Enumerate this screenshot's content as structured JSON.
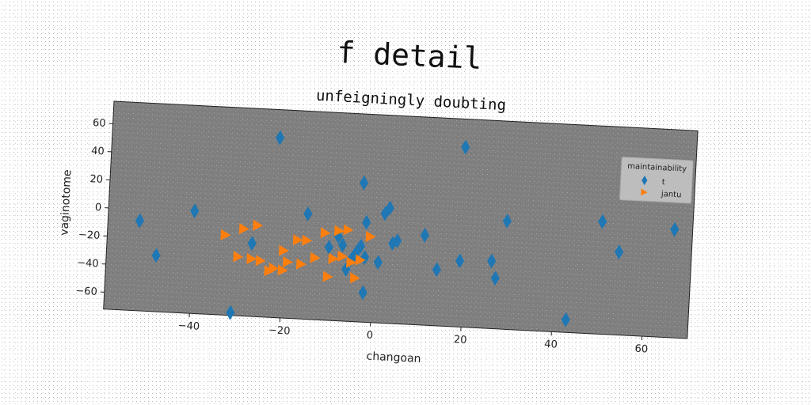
{
  "chart_data": {
    "type": "scatter",
    "title": "f detail",
    "subtitle": "unfeigningly doubting",
    "xlabel": "changoan",
    "ylabel": "vaginotome",
    "xlim": [
      -59,
      70
    ],
    "ylim": [
      -72,
      76
    ],
    "xticks": [
      -40,
      -20,
      0,
      20,
      40,
      60
    ],
    "yticks": [
      -60,
      -40,
      -20,
      0,
      20,
      40,
      60
    ],
    "xtick_labels": [
      "−40",
      "−20",
      "0",
      "20",
      "40",
      "60"
    ],
    "ytick_labels": [
      "−60",
      "−40",
      "−20",
      "0",
      "20",
      "40",
      "60"
    ],
    "grid": false,
    "legend": {
      "title": "maintainability",
      "placement": "top-right"
    },
    "series": [
      {
        "name": "t",
        "marker": "diamond",
        "color": "#1f77b4",
        "points": [
          [
            -52,
            -8
          ],
          [
            -48,
            -32
          ],
          [
            -40,
            1
          ],
          [
            -31,
            -70
          ],
          [
            -27,
            -20
          ],
          [
            -22,
            56
          ],
          [
            -15,
            3
          ],
          [
            -10,
            -20
          ],
          [
            -8,
            -12
          ],
          [
            -7,
            -18
          ],
          [
            -6,
            -35
          ],
          [
            -5,
            -28
          ],
          [
            -4,
            -23
          ],
          [
            -3,
            -18
          ],
          [
            -3,
            27
          ],
          [
            -2,
            -26
          ],
          [
            -2,
            -1
          ],
          [
            -2,
            -51
          ],
          [
            1,
            -29
          ],
          [
            2,
            6
          ],
          [
            3,
            10
          ],
          [
            4,
            -15
          ],
          [
            5,
            -13
          ],
          [
            11,
            -8
          ],
          [
            14,
            -32
          ],
          [
            19,
            56
          ],
          [
            19,
            -25
          ],
          [
            26,
            -24
          ],
          [
            27,
            -36
          ],
          [
            29,
            5
          ],
          [
            43,
            -63
          ],
          [
            50,
            8
          ],
          [
            54,
            -13
          ],
          [
            66,
            5
          ]
        ]
      },
      {
        "name": "jantu",
        "marker": "triangle-right",
        "color": "#ff7f0e",
        "points": [
          [
            -33,
            -15
          ],
          [
            -30,
            -30
          ],
          [
            -29,
            -10
          ],
          [
            -27,
            -31
          ],
          [
            -26,
            -7
          ],
          [
            -25,
            -32
          ],
          [
            -23,
            -39
          ],
          [
            -22,
            -37
          ],
          [
            -20,
            -24
          ],
          [
            -20,
            -38
          ],
          [
            -19,
            -32
          ],
          [
            -17,
            -16
          ],
          [
            -16,
            -33
          ],
          [
            -15,
            -16
          ],
          [
            -13,
            -28
          ],
          [
            -11,
            -10
          ],
          [
            -10,
            -41
          ],
          [
            -9,
            -28
          ],
          [
            -8,
            -8
          ],
          [
            -7,
            -26
          ],
          [
            -6,
            -7
          ],
          [
            -5,
            -30
          ],
          [
            -4,
            -41
          ],
          [
            -3,
            -28
          ],
          [
            -1,
            -11
          ]
        ]
      }
    ]
  }
}
